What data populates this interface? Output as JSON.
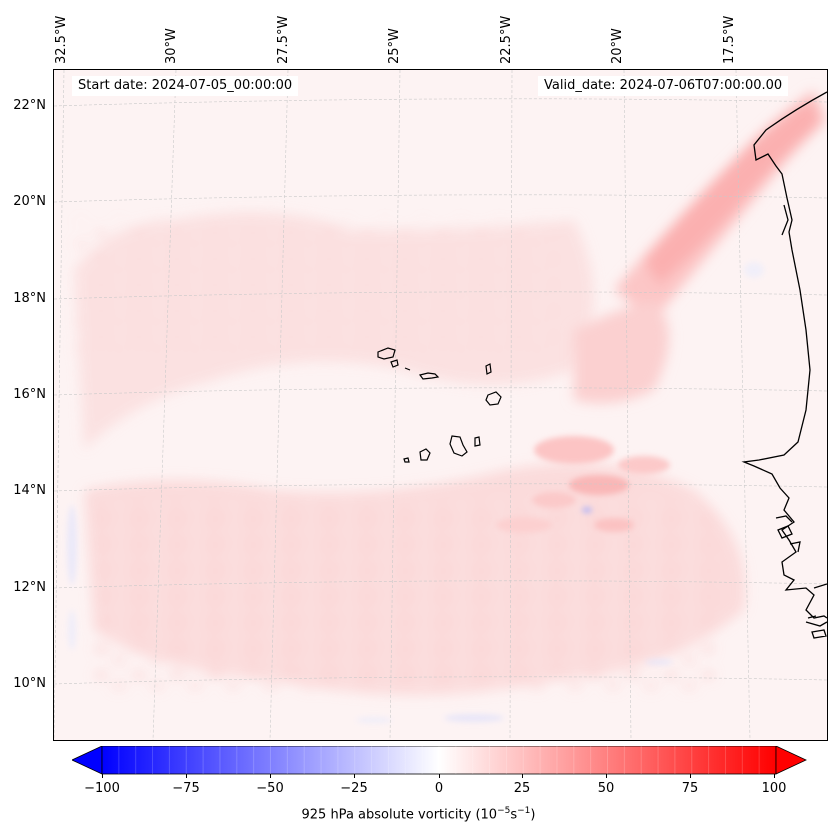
{
  "map": {
    "lon_labels": [
      "32.5°W",
      "30°W",
      "27.5°W",
      "25°W",
      "22.5°W",
      "20°W",
      "17.5°W"
    ],
    "lat_labels": [
      "22°N",
      "20°N",
      "18°N",
      "16°N",
      "14°N",
      "12°N",
      "10°N"
    ],
    "start_date": "Start date: 2024-07-05_00:00:00",
    "valid_date": "Valid_date: 2024-07-06T07:00:00.00",
    "field_variable": "925 hPa absolute vorticity",
    "background_color": "#fdf4f4",
    "coastline_color": "#000000",
    "positive_color": "#ff0000",
    "negative_color": "#0000ff"
  },
  "colorbar": {
    "min": -100,
    "max": 100,
    "tick_values": [
      -100,
      -75,
      -50,
      -25,
      0,
      25,
      50,
      75,
      100
    ],
    "tick_labels": [
      "−100",
      "−75",
      "−50",
      "−25",
      "0",
      "25",
      "50",
      "75",
      "100"
    ],
    "label_prefix": "925 hPa absolute vorticity (10",
    "label_exp1": "−5",
    "label_mid": "s",
    "label_exp2": "−1",
    "label_suffix": ")"
  }
}
